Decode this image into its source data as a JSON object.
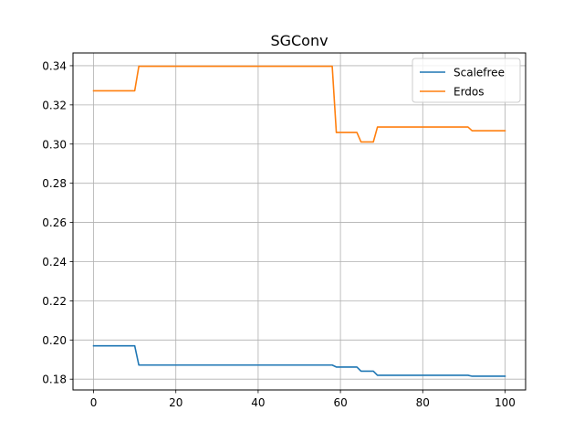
{
  "chart_data": {
    "type": "line",
    "title": "SGConv",
    "xlabel": "",
    "ylabel": "",
    "xlim": [
      -5,
      105
    ],
    "ylim": [
      0.1745,
      0.3465
    ],
    "x_ticks": [
      0,
      20,
      40,
      60,
      80,
      100
    ],
    "y_ticks": [
      0.18,
      0.2,
      0.22,
      0.24,
      0.26,
      0.28,
      0.3,
      0.32,
      0.34
    ],
    "x_tick_labels": [
      "0",
      "20",
      "40",
      "60",
      "80",
      "100"
    ],
    "y_tick_labels": [
      "0.18",
      "0.20",
      "0.22",
      "0.24",
      "0.26",
      "0.28",
      "0.30",
      "0.32",
      "0.34"
    ],
    "grid": true,
    "legend_position": "upper right",
    "series": [
      {
        "name": "Scalefree",
        "color": "#1f77b4",
        "points": [
          [
            0,
            0.197
          ],
          [
            10,
            0.197
          ],
          [
            11,
            0.1872
          ],
          [
            58,
            0.1872
          ],
          [
            59,
            0.1862
          ],
          [
            64,
            0.1862
          ],
          [
            65,
            0.1841
          ],
          [
            68,
            0.1841
          ],
          [
            69,
            0.182
          ],
          [
            91,
            0.182
          ],
          [
            92,
            0.1815
          ],
          [
            100,
            0.1815
          ]
        ]
      },
      {
        "name": "Erdos",
        "color": "#ff7f0e",
        "points": [
          [
            0,
            0.3272
          ],
          [
            10,
            0.3272
          ],
          [
            11,
            0.3397
          ],
          [
            58,
            0.3397
          ],
          [
            59,
            0.3059
          ],
          [
            64,
            0.3059
          ],
          [
            65,
            0.3011
          ],
          [
            68,
            0.3011
          ],
          [
            69,
            0.3087
          ],
          [
            91,
            0.3087
          ],
          [
            92,
            0.3068
          ],
          [
            100,
            0.3068
          ]
        ]
      }
    ]
  }
}
